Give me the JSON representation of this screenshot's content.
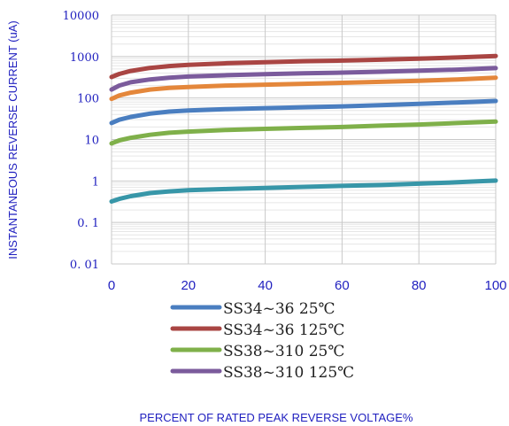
{
  "chart_data": {
    "type": "line",
    "title": "",
    "xlabel": "PERCENT OF RATED PEAK REVERSE VOLTAGE%",
    "ylabel": "INSTANTANEOUS REVERSE CURRENT (uA)",
    "y_scale": "log",
    "xlim": [
      0,
      100
    ],
    "ylim": [
      0.01,
      10000
    ],
    "x_ticks": [
      "0",
      "20",
      "40",
      "60",
      "80",
      "100"
    ],
    "y_ticks": [
      "10000",
      "1000",
      "100",
      "10",
      "1",
      "0. 1",
      "0. 01"
    ],
    "grid": true,
    "legend_position": "bottom-center",
    "x": [
      0,
      2,
      5,
      10,
      15,
      20,
      30,
      40,
      50,
      60,
      70,
      80,
      90,
      100
    ],
    "series": [
      {
        "name": "SS34~36  25℃",
        "color": "#4a7ec0",
        "values": [
          25,
          30,
          35,
          42,
          47,
          50,
          54,
          57,
          60,
          63,
          67,
          72,
          78,
          85
        ]
      },
      {
        "name": "SS34~36  125℃",
        "color": "#a94543",
        "values": [
          320,
          380,
          450,
          530,
          590,
          630,
          690,
          730,
          770,
          800,
          840,
          890,
          950,
          1030
        ]
      },
      {
        "name": "SS38~310  25℃",
        "color": "#7fb04a",
        "values": [
          8,
          9.5,
          11,
          13,
          14.5,
          15.5,
          17,
          18,
          19,
          20,
          21.5,
          23,
          25,
          27
        ]
      },
      {
        "name": "SS38~310  125℃",
        "color": "#7b5b9c",
        "values": [
          160,
          200,
          240,
          280,
          310,
          330,
          355,
          375,
          395,
          410,
          430,
          455,
          485,
          525
        ]
      },
      {
        "name": "",
        "color": "#e4873b",
        "values": [
          95,
          115,
          135,
          160,
          175,
          185,
          200,
          210,
          220,
          232,
          245,
          260,
          280,
          310
        ]
      },
      {
        "name": "",
        "color": "#3796a8",
        "values": [
          0.32,
          0.37,
          0.43,
          0.51,
          0.56,
          0.6,
          0.64,
          0.68,
          0.72,
          0.76,
          0.8,
          0.86,
          0.93,
          1.02
        ]
      }
    ]
  }
}
